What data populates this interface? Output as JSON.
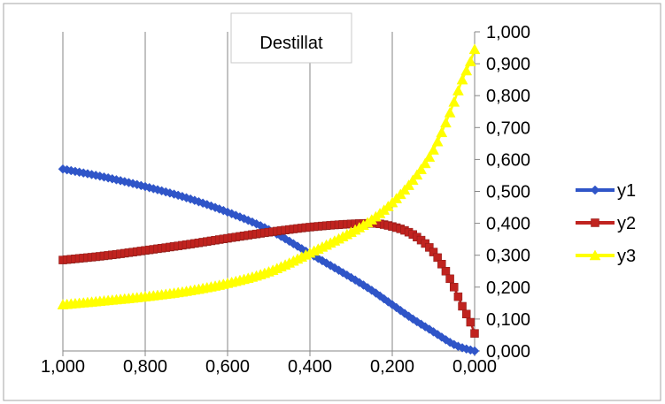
{
  "chart_data": {
    "type": "line",
    "title": "Destillat",
    "xlim": [
      1.0,
      0.0
    ],
    "ylim": [
      0.0,
      1.0
    ],
    "x_reversed": true,
    "y_axis_position": "right",
    "grid": {
      "vertical": true,
      "horizontal": false
    },
    "legend_position": "right",
    "x_ticks": [
      "1,000",
      "0,800",
      "0,600",
      "0,400",
      "0,200",
      "0,000"
    ],
    "x_tick_values": [
      1.0,
      0.8,
      0.6,
      0.4,
      0.2,
      0.0
    ],
    "y_ticks": [
      "0,000",
      "0,100",
      "0,200",
      "0,300",
      "0,400",
      "0,500",
      "0,600",
      "0,700",
      "0,800",
      "0,900",
      "1,000"
    ],
    "y_tick_values": [
      0.0,
      0.1,
      0.2,
      0.3,
      0.4,
      0.5,
      0.6,
      0.7,
      0.8,
      0.9,
      1.0
    ],
    "x": [
      1.0,
      0.9,
      0.8,
      0.7,
      0.6,
      0.5,
      0.4,
      0.3,
      0.25,
      0.2,
      0.15,
      0.1,
      0.07,
      0.05,
      0.03,
      0.01,
      0.0
    ],
    "series": [
      {
        "name": "y1",
        "color": "#2F55C8",
        "marker": "diamond",
        "values": [
          0.57,
          0.545,
          0.515,
          0.48,
          0.435,
          0.38,
          0.305,
          0.23,
          0.19,
          0.145,
          0.1,
          0.06,
          0.035,
          0.02,
          0.01,
          0.003,
          0.0
        ]
      },
      {
        "name": "y2",
        "color": "#C0231F",
        "marker": "square",
        "values": [
          0.285,
          0.298,
          0.315,
          0.333,
          0.353,
          0.372,
          0.388,
          0.398,
          0.4,
          0.39,
          0.365,
          0.31,
          0.25,
          0.2,
          0.14,
          0.09,
          0.055
        ]
      },
      {
        "name": "y3",
        "color": "#FFFF00",
        "marker": "triangle",
        "values": [
          0.145,
          0.157,
          0.17,
          0.187,
          0.212,
          0.248,
          0.307,
          0.372,
          0.411,
          0.465,
          0.535,
          0.63,
          0.715,
          0.78,
          0.85,
          0.907,
          0.945
        ]
      }
    ]
  }
}
